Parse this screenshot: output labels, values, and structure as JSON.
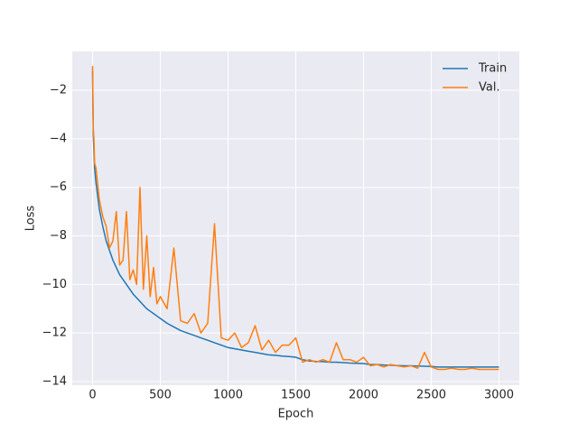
{
  "chart_data": {
    "type": "line",
    "x_label": "Epoch",
    "y_label": "Loss",
    "x": [
      0,
      5,
      10,
      15,
      25,
      50,
      75,
      100,
      125,
      150,
      175,
      200,
      225,
      250,
      275,
      300,
      325,
      350,
      375,
      400,
      425,
      450,
      475,
      500,
      550,
      600,
      650,
      700,
      750,
      800,
      850,
      900,
      950,
      1000,
      1050,
      1100,
      1150,
      1200,
      1250,
      1300,
      1350,
      1400,
      1450,
      1500,
      1550,
      1600,
      1650,
      1700,
      1750,
      1800,
      1850,
      1900,
      1950,
      2000,
      2050,
      2100,
      2150,
      2200,
      2250,
      2300,
      2350,
      2400,
      2450,
      2500,
      2550,
      2600,
      2650,
      2700,
      2750,
      2800,
      2850,
      2900,
      2950,
      3000
    ],
    "series": [
      {
        "name": "Train",
        "color": "#1f77b4",
        "values": [
          -1.2,
          -3.8,
          -4.5,
          -5.2,
          -5.8,
          -6.9,
          -7.6,
          -8.2,
          -8.6,
          -9.0,
          -9.3,
          -9.6,
          -9.8,
          -10.0,
          -10.2,
          -10.4,
          -10.55,
          -10.7,
          -10.85,
          -11.0,
          -11.1,
          -11.2,
          -11.3,
          -11.4,
          -11.6,
          -11.75,
          -11.9,
          -12.0,
          -12.1,
          -12.2,
          -12.3,
          -12.4,
          -12.5,
          -12.6,
          -12.65,
          -12.7,
          -12.75,
          -12.8,
          -12.85,
          -12.9,
          -12.92,
          -12.95,
          -12.97,
          -13.0,
          -13.1,
          -13.15,
          -13.17,
          -13.18,
          -13.2,
          -13.2,
          -13.22,
          -13.24,
          -13.25,
          -13.26,
          -13.3,
          -13.3,
          -13.32,
          -13.33,
          -13.34,
          -13.35,
          -13.35,
          -13.36,
          -13.37,
          -13.38,
          -13.4,
          -13.4,
          -13.4,
          -13.4,
          -13.4,
          -13.4,
          -13.4,
          -13.4,
          -13.4,
          -13.4
        ]
      },
      {
        "name": "Val.",
        "color": "#ff7f0e",
        "values": [
          -1.0,
          -3.5,
          -4.0,
          -5.0,
          -5.2,
          -6.5,
          -7.2,
          -7.6,
          -8.5,
          -8.2,
          -7.0,
          -9.2,
          -9.0,
          -7.0,
          -9.8,
          -9.4,
          -10.0,
          -6.0,
          -10.2,
          -8.0,
          -10.5,
          -9.3,
          -10.8,
          -10.5,
          -11.0,
          -8.5,
          -11.5,
          -11.6,
          -11.2,
          -12.0,
          -11.6,
          -7.5,
          -12.2,
          -12.3,
          -12.0,
          -12.6,
          -12.4,
          -11.7,
          -12.7,
          -12.3,
          -12.8,
          -12.5,
          -12.5,
          -12.2,
          -13.2,
          -13.1,
          -13.2,
          -13.1,
          -13.2,
          -12.4,
          -13.1,
          -13.1,
          -13.2,
          -13.0,
          -13.35,
          -13.3,
          -13.4,
          -13.3,
          -13.35,
          -13.4,
          -13.35,
          -13.45,
          -12.8,
          -13.4,
          -13.5,
          -13.5,
          -13.45,
          -13.5,
          -13.5,
          -13.45,
          -13.5,
          -13.5,
          -13.5,
          -13.5
        ]
      }
    ],
    "xlim": [
      -150,
      3150
    ],
    "ylim": [
      -14.15,
      -0.4
    ],
    "xticks": [
      0,
      500,
      1000,
      1500,
      2000,
      2500,
      3000
    ],
    "yticks": [
      {
        "value": -14,
        "label": "−14"
      },
      {
        "value": -12,
        "label": "−12"
      },
      {
        "value": -10,
        "label": "−10"
      },
      {
        "value": -8,
        "label": "−8"
      },
      {
        "value": -6,
        "label": "−6"
      },
      {
        "value": -4,
        "label": "−4"
      },
      {
        "value": -2,
        "label": "−2"
      }
    ],
    "grid": true,
    "legend": "upper right"
  }
}
